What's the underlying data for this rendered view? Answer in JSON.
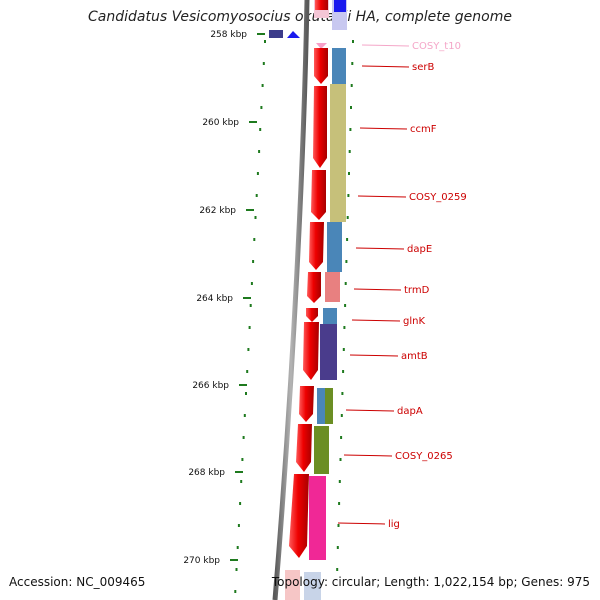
{
  "title": "Candidatus Vesicomyosocius okutanii HA, complete genome",
  "footer": {
    "accession": "Accession: NC_009465",
    "summary": "Topology: circular; Length: 1,022,154 bp; Genes: 975"
  },
  "ruler": {
    "labels": [
      "258 kbp",
      "260 kbp",
      "262 kbp",
      "264 kbp",
      "266 kbp",
      "268 kbp",
      "270 kbp"
    ]
  },
  "genes": [
    {
      "label": "COSY_t10",
      "color": "#f4a6c8"
    },
    {
      "label": "serB",
      "color": "#cc0000"
    },
    {
      "label": "ccmF",
      "color": "#cc0000"
    },
    {
      "label": "COSY_0259",
      "color": "#cc0000"
    },
    {
      "label": "dapE",
      "color": "#cc0000"
    },
    {
      "label": "trmD",
      "color": "#cc0000"
    },
    {
      "label": "glnK",
      "color": "#cc0000"
    },
    {
      "label": "amtB",
      "color": "#cc0000"
    },
    {
      "label": "dapA",
      "color": "#cc0000"
    },
    {
      "label": "COSY_0265",
      "color": "#cc0000"
    },
    {
      "label": "lig",
      "color": "#cc0000"
    }
  ],
  "colors": {
    "backbone": "#7f7f7f",
    "cds": "#ee0000",
    "tick": "#1e7a1e"
  }
}
